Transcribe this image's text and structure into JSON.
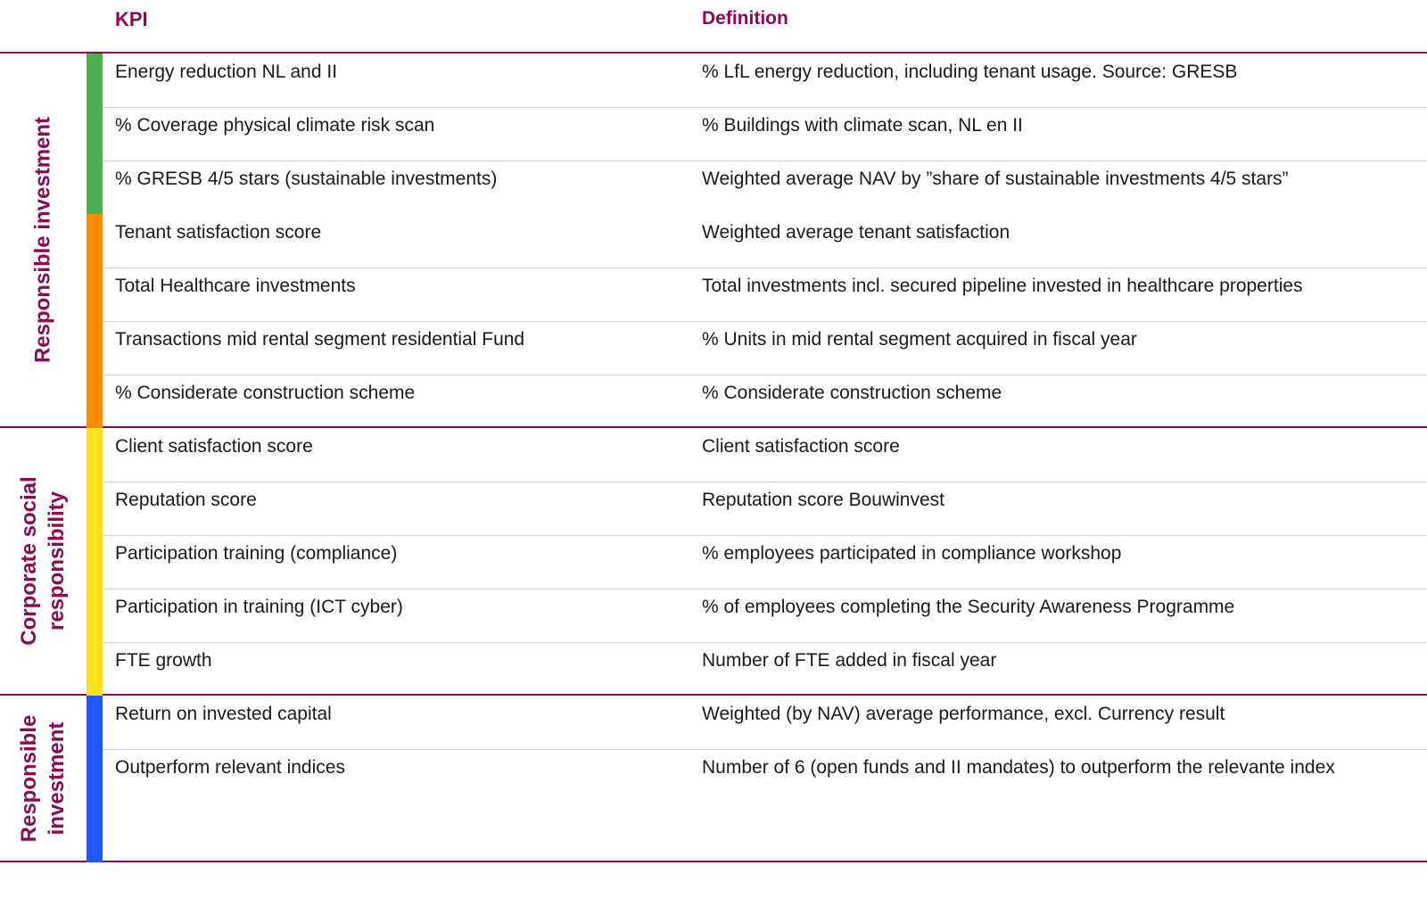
{
  "header": {
    "kpi": "KPI",
    "definition": "Definition"
  },
  "sections": [
    {
      "label_lines": [
        "Responsible investment"
      ],
      "groups": [
        {
          "color": "#4caf50",
          "rows": [
            {
              "kpi": "Energy reduction NL and II",
              "definition": "% LfL energy reduction, including tenant usage. Source: GRESB"
            },
            {
              "kpi": "% Coverage physical climate risk scan",
              "definition": "% Buildings with climate scan, NL en II"
            },
            {
              "kpi": "% GRESB 4/5 stars (sustainable investments)",
              "definition": "Weighted average NAV by ”share of sustainable investments 4/5 stars”"
            }
          ]
        },
        {
          "color": "#ff8c00",
          "rows": [
            {
              "kpi": "Tenant satisfaction score",
              "definition": "Weighted average tenant satisfaction"
            },
            {
              "kpi": "Total Healthcare investments",
              "definition": "Total investments incl. secured pipeline invested in healthcare properties"
            },
            {
              "kpi": "Transactions mid rental segment residential Fund",
              "definition": "% Units in mid rental segment acquired in fiscal year"
            },
            {
              "kpi": "% Considerate construction scheme",
              "definition": "% Considerate construction scheme"
            }
          ]
        }
      ]
    },
    {
      "label_lines": [
        "Corporate social",
        "responsibility"
      ],
      "groups": [
        {
          "color": "#ffe01b",
          "rows": [
            {
              "kpi": "Client satisfaction score",
              "definition": "Client satisfaction score"
            },
            {
              "kpi": "Reputation score",
              "definition": "Reputation score Bouwinvest"
            },
            {
              "kpi": "Participation training (compliance)",
              "definition": "% employees participated in compliance workshop"
            },
            {
              "kpi": "Participation in training (ICT cyber)",
              "definition": "% of employees completing the Security Awareness Programme"
            },
            {
              "kpi": "FTE growth",
              "definition": "Number of FTE added in fiscal year"
            }
          ]
        }
      ]
    },
    {
      "label_lines": [
        "Responsible",
        "investment"
      ],
      "groups": [
        {
          "color": "#2256ff",
          "rows": [
            {
              "kpi": "Return on invested capital",
              "definition": "Weighted (by NAV) average performance, excl. Currency result"
            },
            {
              "kpi": "Outperform relevant indices",
              "definition": "Number of 6 (open funds and II mandates) to outperform the relevante index"
            }
          ]
        }
      ]
    }
  ]
}
